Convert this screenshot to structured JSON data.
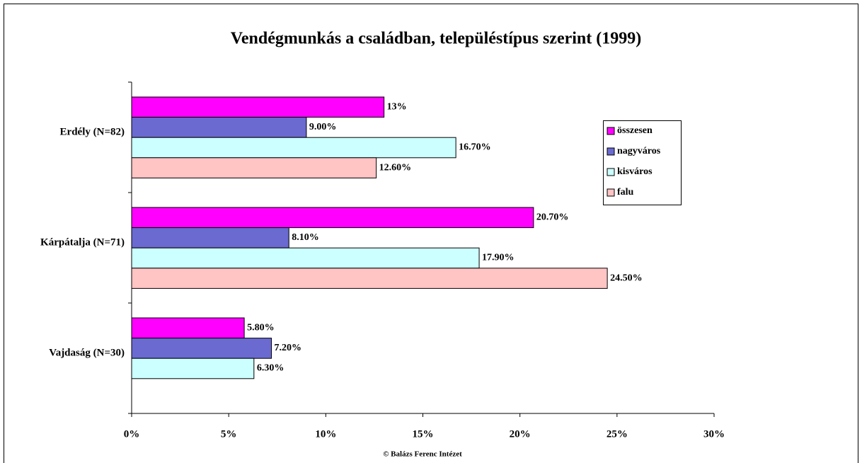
{
  "chart_data": {
    "type": "bar",
    "orientation": "horizontal",
    "title": "Vendégmunkás a családban, településtípus szerint (1999)",
    "categories": [
      "Erdély (N=82)",
      "Kárpátalja (N=71)",
      "Vajdaság (N=30)"
    ],
    "series": [
      {
        "name": "összesen",
        "color": "#ff00ff",
        "values": [
          13,
          20.7,
          5.8
        ],
        "value_labels": [
          "13%",
          "20.70%",
          "5.80%"
        ]
      },
      {
        "name": "nagyváros",
        "color": "#6a6ad0",
        "values": [
          9,
          8.1,
          7.2
        ],
        "value_labels": [
          "9.00%",
          "8.10%",
          "7.20%"
        ]
      },
      {
        "name": "kisváros",
        "color": "#ccffff",
        "values": [
          16.7,
          17.9,
          6.3
        ],
        "value_labels": [
          "16.70%",
          "17.90%",
          "6.30%"
        ]
      },
      {
        "name": "falu",
        "color": "#ffc4c4",
        "values": [
          12.6,
          24.5,
          null
        ],
        "value_labels": [
          "12.60%",
          "24.50%",
          null
        ]
      }
    ],
    "xlim": [
      0,
      30
    ],
    "xticks": [
      {
        "value": 0,
        "label": "0%"
      },
      {
        "value": 5,
        "label": "5%"
      },
      {
        "value": 10,
        "label": "10%"
      },
      {
        "value": 15,
        "label": "15%"
      },
      {
        "value": 20,
        "label": "20%"
      },
      {
        "value": 25,
        "label": "25%"
      },
      {
        "value": 30,
        "label": "30%"
      }
    ],
    "legend": "right",
    "note": "© Balázs Ferenc Intézet"
  }
}
